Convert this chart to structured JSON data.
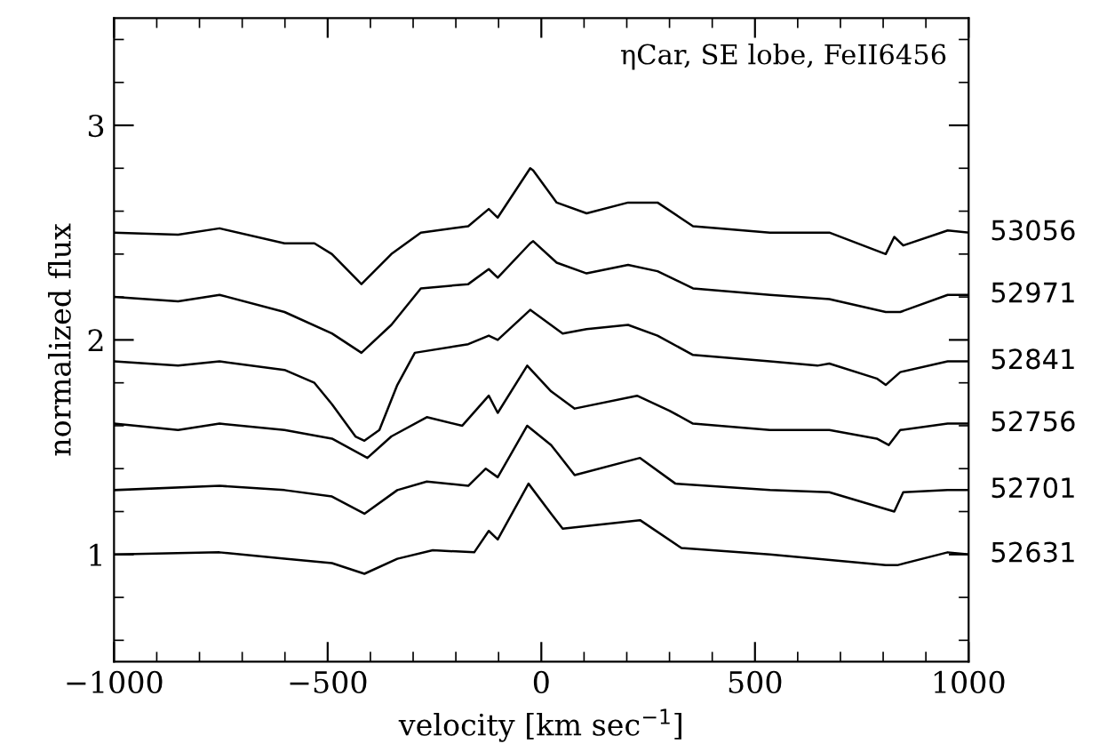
{
  "chart_data": {
    "type": "line",
    "xlabel": "velocity [km sec$^{−1}$]",
    "ylabel": "normalized flux",
    "annotations": [
      "ηCar, SE lobe, FeII6456"
    ],
    "xlim": [
      -1000,
      1000
    ],
    "ylim": [
      0.5,
      3.5
    ],
    "xticks": [
      -1000,
      {
        "value": -900,
        "label": null
      },
      {
        "value": -800,
        "label": null
      },
      {
        "value": -700,
        "label": null
      },
      {
        "value": -600,
        "label": null
      },
      -500,
      {
        "value": -400,
        "label": null
      },
      {
        "value": -300,
        "label": null
      },
      {
        "value": -200,
        "label": null
      },
      {
        "value": -100,
        "label": null
      },
      0,
      {
        "value": 100,
        "label": null
      },
      {
        "value": 200,
        "label": null
      },
      {
        "value": 300,
        "label": null
      },
      {
        "value": 400,
        "label": null
      },
      500,
      {
        "value": 600,
        "label": null
      },
      {
        "value": 700,
        "label": null
      },
      {
        "value": 800,
        "label": null
      },
      {
        "value": 900,
        "label": null
      },
      1000
    ],
    "yticks": [
      {
        "value": 0.6,
        "label": null
      },
      {
        "value": 0.8,
        "label": null
      },
      1,
      {
        "value": 1.2,
        "label": null
      },
      {
        "value": 1.4,
        "label": null
      },
      {
        "value": 1.6,
        "label": null
      },
      {
        "value": 1.8,
        "label": null
      },
      2,
      {
        "value": 2.2,
        "label": null
      },
      {
        "value": 2.4,
        "label": null
      },
      {
        "value": 2.6,
        "label": null
      },
      {
        "value": 2.8,
        "label": null
      },
      3,
      {
        "value": 3.2,
        "label": null
      },
      {
        "value": 3.4,
        "label": null
      }
    ],
    "grid": false,
    "legend": "right",
    "marker": "none",
    "line_style": "solid",
    "series": [
      {
        "name": "53056",
        "color": "#000000",
        "x": [
          -1000,
          -850,
          -753,
          -601,
          -531,
          -490,
          -421,
          -351,
          -282,
          -171,
          -123,
          -102,
          -26,
          -19,
          36,
          106,
          203,
          272,
          355,
          535,
          674,
          806,
          826,
          847,
          951,
          1000
        ],
        "values": [
          2.5,
          2.49,
          2.52,
          2.45,
          2.45,
          2.4,
          2.26,
          2.4,
          2.5,
          2.53,
          2.61,
          2.57,
          2.8,
          2.79,
          2.64,
          2.59,
          2.64,
          2.64,
          2.53,
          2.5,
          2.5,
          2.4,
          2.48,
          2.44,
          2.51,
          2.5
        ]
      },
      {
        "name": "52971",
        "color": "#000000",
        "x": [
          -1000,
          -850,
          -753,
          -601,
          -490,
          -421,
          -351,
          -282,
          -171,
          -123,
          -102,
          -26,
          -19,
          36,
          106,
          203,
          272,
          355,
          535,
          674,
          806,
          840,
          951,
          1000
        ],
        "values": [
          2.2,
          2.18,
          2.21,
          2.13,
          2.03,
          1.94,
          2.07,
          2.24,
          2.26,
          2.33,
          2.29,
          2.45,
          2.46,
          2.36,
          2.31,
          2.35,
          2.32,
          2.24,
          2.21,
          2.19,
          2.13,
          2.13,
          2.21,
          2.21
        ]
      },
      {
        "name": "52841",
        "color": "#000000",
        "x": [
          -1000,
          -850,
          -753,
          -601,
          -531,
          -490,
          -435,
          -414,
          -379,
          -337,
          -296,
          -171,
          -123,
          -102,
          -26,
          -19,
          50,
          106,
          203,
          272,
          355,
          535,
          646,
          674,
          785,
          806,
          840,
          951,
          1000
        ],
        "values": [
          1.9,
          1.88,
          1.9,
          1.86,
          1.8,
          1.7,
          1.55,
          1.53,
          1.58,
          1.79,
          1.94,
          1.98,
          2.02,
          2.0,
          2.14,
          2.13,
          2.03,
          2.05,
          2.07,
          2.02,
          1.93,
          1.9,
          1.88,
          1.89,
          1.82,
          1.79,
          1.85,
          1.9,
          1.9
        ]
      },
      {
        "name": "52756",
        "color": "#000000",
        "x": [
          -1000,
          -850,
          -753,
          -601,
          -490,
          -407,
          -351,
          -268,
          -185,
          -123,
          -102,
          -33,
          23,
          78,
          224,
          300,
          355,
          535,
          674,
          785,
          813,
          840,
          951,
          1000
        ],
        "values": [
          1.61,
          1.58,
          1.61,
          1.58,
          1.54,
          1.45,
          1.55,
          1.64,
          1.6,
          1.74,
          1.66,
          1.88,
          1.76,
          1.68,
          1.74,
          1.67,
          1.61,
          1.58,
          1.58,
          1.54,
          1.51,
          1.58,
          1.61,
          1.61
        ]
      },
      {
        "name": "52701",
        "color": "#000000",
        "x": [
          -1000,
          -753,
          -601,
          -490,
          -414,
          -337,
          -268,
          -171,
          -130,
          -102,
          -33,
          23,
          78,
          231,
          314,
          535,
          674,
          826,
          847,
          951,
          1000
        ],
        "values": [
          1.3,
          1.32,
          1.3,
          1.27,
          1.19,
          1.3,
          1.34,
          1.32,
          1.4,
          1.36,
          1.6,
          1.51,
          1.37,
          1.45,
          1.33,
          1.3,
          1.29,
          1.2,
          1.29,
          1.3,
          1.3
        ]
      },
      {
        "name": "52631",
        "color": "#000000",
        "x": [
          -1000,
          -753,
          -601,
          -490,
          -414,
          -337,
          -254,
          -157,
          -123,
          -102,
          -30,
          23,
          50,
          231,
          328,
          535,
          806,
          833,
          951,
          1000
        ],
        "values": [
          1.0,
          1.01,
          0.98,
          0.96,
          0.91,
          0.98,
          1.02,
          1.01,
          1.11,
          1.07,
          1.33,
          1.19,
          1.12,
          1.16,
          1.03,
          1.0,
          0.95,
          0.95,
          1.01,
          1.0
        ]
      }
    ]
  }
}
